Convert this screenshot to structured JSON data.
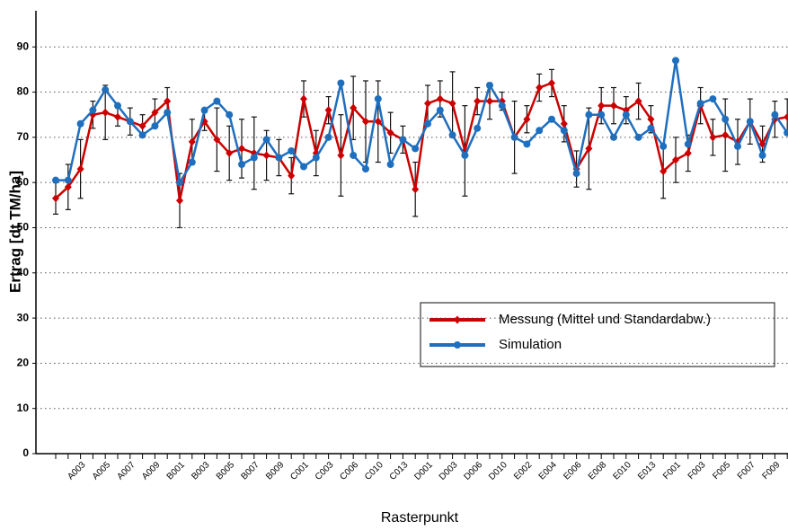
{
  "chart_data": {
    "type": "line",
    "xlabel": "Rasterpunkt",
    "ylabel": "Ertrag [dt TM/ha]",
    "categories": [
      null,
      null,
      "A003",
      null,
      "A005",
      null,
      "A007",
      null,
      "A009",
      null,
      "B001",
      null,
      "B003",
      null,
      "B005",
      null,
      "B007",
      null,
      "B009",
      null,
      "C001",
      null,
      "C003",
      null,
      "C006",
      null,
      "C010",
      null,
      "C013",
      null,
      "D001",
      null,
      "D003",
      null,
      "D006",
      null,
      "D010",
      null,
      "E002",
      null,
      "E004",
      null,
      "E006",
      null,
      "E008",
      null,
      "E010",
      null,
      "E013",
      null,
      "F001",
      null,
      "F003",
      null,
      "F005",
      null,
      "F007",
      null,
      "F009",
      null
    ],
    "series": [
      {
        "name": "Messung (Mittel und Standardabw.)",
        "color": "#cc0000",
        "marker": "diamond",
        "values": [
          56.5,
          59,
          63,
          75,
          75.5,
          74.5,
          73.5,
          72.5,
          75.5,
          78,
          56,
          69,
          73.5,
          69.5,
          66.5,
          67.5,
          66.5,
          66,
          65.5,
          61.5,
          78.5,
          66.5,
          76,
          66,
          76.5,
          73.5,
          73.5,
          71,
          69.5,
          58.5,
          77.5,
          78.5,
          77.5,
          67,
          78,
          78,
          78,
          70,
          74,
          81,
          82,
          73,
          63,
          67.5,
          77,
          77,
          76,
          78,
          74,
          62.5,
          65,
          66.5,
          77,
          70,
          70.5,
          69,
          73.5,
          68.5,
          74,
          74.5
        ],
        "errors": [
          3.5,
          5,
          6.5,
          3,
          6,
          2,
          3,
          2.5,
          3,
          3,
          6,
          5,
          2,
          7,
          6,
          6.5,
          8,
          5.5,
          4,
          4,
          4,
          5,
          3,
          9,
          7,
          9,
          9,
          4.5,
          3,
          6,
          4,
          4,
          7,
          10,
          3,
          4,
          2,
          8,
          3,
          3,
          3,
          4,
          4,
          9,
          4,
          4,
          3,
          4,
          3,
          6,
          5,
          4,
          4,
          4,
          8,
          5,
          5,
          4,
          4,
          4
        ]
      },
      {
        "name": "Simulation",
        "color": "#1f6fbf",
        "marker": "circle",
        "values": [
          60.5,
          60.5,
          73,
          76,
          80.5,
          77,
          73.5,
          70.5,
          72.5,
          75.5,
          60,
          64.5,
          76,
          78,
          75,
          64,
          65.5,
          69.5,
          65.5,
          67,
          63.5,
          65.5,
          70,
          82,
          66,
          63,
          78.5,
          64,
          69.5,
          67.5,
          73,
          76,
          70.5,
          66,
          72,
          81.5,
          77,
          70,
          68.5,
          71.5,
          74,
          71.5,
          62,
          75,
          75,
          70,
          75,
          70,
          72,
          68,
          87,
          68.5,
          77.5,
          78.5,
          74,
          68,
          73.5,
          66,
          75,
          71
        ]
      }
    ],
    "ylim": [
      0,
      98
    ],
    "yticks": [
      0,
      10,
      20,
      30,
      40,
      50,
      60,
      70,
      80,
      90
    ],
    "grid": true,
    "legend": "lower right"
  }
}
